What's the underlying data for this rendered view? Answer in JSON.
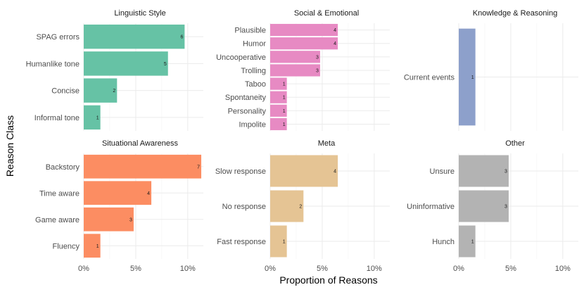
{
  "chart_data": {
    "type": "bar",
    "orientation": "horizontal",
    "xlabel": "Proportion of Reasons",
    "ylabel": "Reason Class",
    "x_ticks": [
      "0%",
      "5%",
      "10%"
    ],
    "xlim": [
      0,
      11.5
    ],
    "grid": true,
    "colors": {
      "Linguistic Style": "#66c2a5",
      "Social & Emotional": "#e78ac3",
      "Knowledge & Reasoning": "#8da0cb",
      "Situational Awareness": "#fc8d62",
      "Meta": "#e5c494",
      "Other": "#b3b3b3"
    },
    "panels": [
      {
        "title": "Linguistic Style",
        "bars": [
          {
            "label": "SPAG errors",
            "value": 9.7,
            "count": "6"
          },
          {
            "label": "Humanlike tone",
            "value": 8.1,
            "count": "5"
          },
          {
            "label": "Concise",
            "value": 3.2,
            "count": "2"
          },
          {
            "label": "Informal tone",
            "value": 1.6,
            "count": "1"
          }
        ]
      },
      {
        "title": "Social & Emotional",
        "bars": [
          {
            "label": "Plausible",
            "value": 6.5,
            "count": "4"
          },
          {
            "label": "Humor",
            "value": 6.5,
            "count": "4"
          },
          {
            "label": "Uncooperative",
            "value": 4.8,
            "count": "3"
          },
          {
            "label": "Trolling",
            "value": 4.8,
            "count": "3"
          },
          {
            "label": "Taboo",
            "value": 1.6,
            "count": "1"
          },
          {
            "label": "Spontaneity",
            "value": 1.6,
            "count": "1"
          },
          {
            "label": "Personality",
            "value": 1.6,
            "count": "1"
          },
          {
            "label": "Impolite",
            "value": 1.6,
            "count": "1"
          }
        ]
      },
      {
        "title": "Knowledge & Reasoning",
        "bars": [
          {
            "label": "Current events",
            "value": 1.6,
            "count": "1"
          }
        ]
      },
      {
        "title": "Situational Awareness",
        "bars": [
          {
            "label": "Backstory",
            "value": 11.3,
            "count": "7"
          },
          {
            "label": "Time aware",
            "value": 6.5,
            "count": "4"
          },
          {
            "label": "Game aware",
            "value": 4.8,
            "count": "3"
          },
          {
            "label": "Fluency",
            "value": 1.6,
            "count": "1"
          }
        ]
      },
      {
        "title": "Meta",
        "bars": [
          {
            "label": "Slow response",
            "value": 6.5,
            "count": "4"
          },
          {
            "label": "No response",
            "value": 3.2,
            "count": "2"
          },
          {
            "label": "Fast response",
            "value": 1.6,
            "count": "1"
          }
        ]
      },
      {
        "title": "Other",
        "bars": [
          {
            "label": "Unsure",
            "value": 4.8,
            "count": "3"
          },
          {
            "label": "Uninformative",
            "value": 4.8,
            "count": "3"
          },
          {
            "label": "Hunch",
            "value": 1.6,
            "count": "1"
          }
        ]
      }
    ]
  }
}
